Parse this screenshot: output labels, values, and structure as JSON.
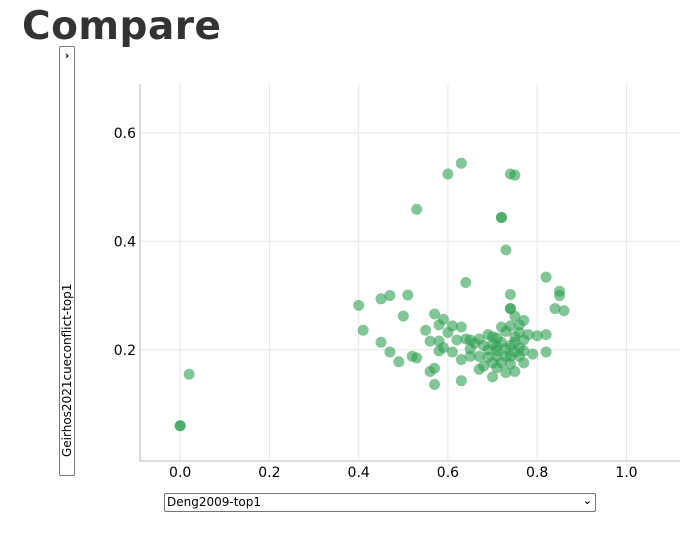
{
  "page": {
    "title": "Compare"
  },
  "controls": {
    "y_select_value": "Geirhos2021cueconflict-top1",
    "x_select_value": "Deng2009-top1",
    "chevron_right": "›",
    "chevron_down": "⌄"
  },
  "colors": {
    "point": "#2e9e52",
    "grid": "#e6e6e6",
    "axis": "#bbbbbb"
  },
  "chart_data": {
    "type": "scatter",
    "xlabel": "Deng2009-top1",
    "ylabel": "Geirhos2021cueconflict-top1",
    "xlim": [
      -0.09,
      1.12
    ],
    "ylim": [
      -0.005,
      0.69
    ],
    "xticks": [
      0.0,
      0.2,
      0.4,
      0.6,
      0.8,
      1.0
    ],
    "yticks": [
      0.2,
      0.4,
      0.6
    ],
    "xtick_labels": [
      "0.0",
      "0.2",
      "0.4",
      "0.6",
      "0.8",
      "1.0"
    ],
    "ytick_labels": [
      "0.2",
      "0.4",
      "0.6"
    ],
    "grid": true,
    "points": [
      [
        0.0,
        0.06
      ],
      [
        0.0,
        0.06
      ],
      [
        0.02,
        0.155
      ],
      [
        0.4,
        0.282
      ],
      [
        0.41,
        0.236
      ],
      [
        0.45,
        0.214
      ],
      [
        0.45,
        0.294
      ],
      [
        0.47,
        0.3
      ],
      [
        0.47,
        0.196
      ],
      [
        0.49,
        0.178
      ],
      [
        0.5,
        0.262
      ],
      [
        0.51,
        0.301
      ],
      [
        0.52,
        0.188
      ],
      [
        0.53,
        0.185
      ],
      [
        0.53,
        0.459
      ],
      [
        0.55,
        0.236
      ],
      [
        0.56,
        0.216
      ],
      [
        0.56,
        0.16
      ],
      [
        0.57,
        0.166
      ],
      [
        0.57,
        0.136
      ],
      [
        0.57,
        0.266
      ],
      [
        0.58,
        0.198
      ],
      [
        0.58,
        0.246
      ],
      [
        0.58,
        0.216
      ],
      [
        0.59,
        0.256
      ],
      [
        0.59,
        0.204
      ],
      [
        0.6,
        0.232
      ],
      [
        0.6,
        0.524
      ],
      [
        0.61,
        0.196
      ],
      [
        0.61,
        0.244
      ],
      [
        0.62,
        0.218
      ],
      [
        0.63,
        0.182
      ],
      [
        0.63,
        0.544
      ],
      [
        0.63,
        0.242
      ],
      [
        0.63,
        0.143
      ],
      [
        0.64,
        0.324
      ],
      [
        0.64,
        0.22
      ],
      [
        0.65,
        0.218
      ],
      [
        0.65,
        0.202
      ],
      [
        0.65,
        0.188
      ],
      [
        0.66,
        0.212
      ],
      [
        0.67,
        0.188
      ],
      [
        0.67,
        0.22
      ],
      [
        0.67,
        0.164
      ],
      [
        0.68,
        0.17
      ],
      [
        0.68,
        0.208
      ],
      [
        0.69,
        0.2
      ],
      [
        0.69,
        0.228
      ],
      [
        0.69,
        0.186
      ],
      [
        0.7,
        0.224
      ],
      [
        0.7,
        0.21
      ],
      [
        0.7,
        0.176
      ],
      [
        0.7,
        0.15
      ],
      [
        0.71,
        0.206
      ],
      [
        0.71,
        0.222
      ],
      [
        0.71,
        0.188
      ],
      [
        0.71,
        0.198
      ],
      [
        0.71,
        0.167
      ],
      [
        0.72,
        0.444
      ],
      [
        0.72,
        0.444
      ],
      [
        0.72,
        0.176
      ],
      [
        0.72,
        0.242
      ],
      [
        0.72,
        0.214
      ],
      [
        0.73,
        0.384
      ],
      [
        0.73,
        0.188
      ],
      [
        0.73,
        0.202
      ],
      [
        0.73,
        0.158
      ],
      [
        0.73,
        0.234
      ],
      [
        0.74,
        0.524
      ],
      [
        0.74,
        0.276
      ],
      [
        0.74,
        0.276
      ],
      [
        0.74,
        0.244
      ],
      [
        0.74,
        0.188
      ],
      [
        0.74,
        0.208
      ],
      [
        0.74,
        0.174
      ],
      [
        0.74,
        0.302
      ],
      [
        0.75,
        0.522
      ],
      [
        0.75,
        0.262
      ],
      [
        0.75,
        0.196
      ],
      [
        0.75,
        0.224
      ],
      [
        0.75,
        0.16
      ],
      [
        0.75,
        0.214
      ],
      [
        0.76,
        0.246
      ],
      [
        0.76,
        0.232
      ],
      [
        0.76,
        0.204
      ],
      [
        0.76,
        0.188
      ],
      [
        0.77,
        0.198
      ],
      [
        0.77,
        0.176
      ],
      [
        0.77,
        0.218
      ],
      [
        0.77,
        0.254
      ],
      [
        0.78,
        0.228
      ],
      [
        0.79,
        0.192
      ],
      [
        0.8,
        0.226
      ],
      [
        0.82,
        0.334
      ],
      [
        0.82,
        0.228
      ],
      [
        0.82,
        0.196
      ],
      [
        0.84,
        0.276
      ],
      [
        0.85,
        0.308
      ],
      [
        0.85,
        0.3
      ],
      [
        0.86,
        0.272
      ]
    ]
  }
}
